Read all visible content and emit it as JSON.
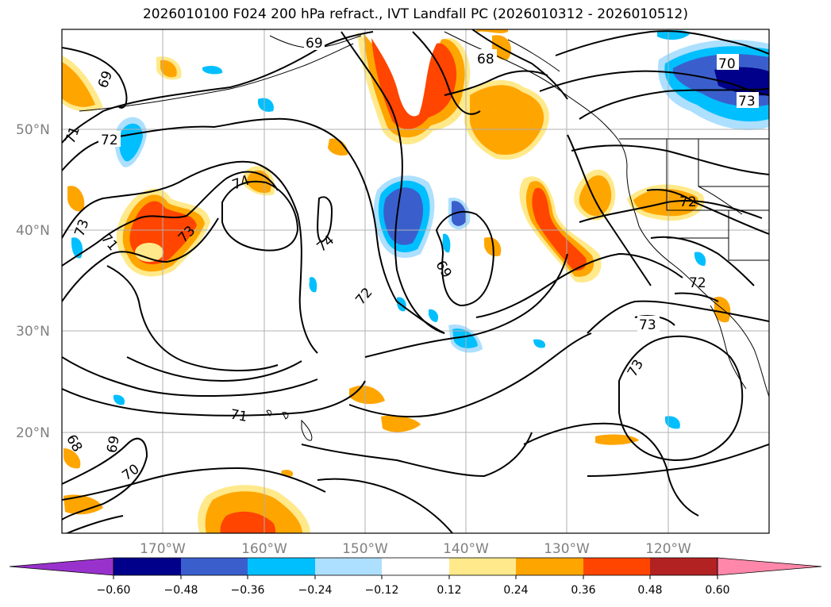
{
  "title": "2026010100 F024 200 hPa refract., IVT Landfall PC (2026010312 - 2026010512)",
  "map": {
    "lon_range": [
      -180,
      -110
    ],
    "lat_range": [
      10,
      60
    ],
    "lat_ticks": [
      {
        "value": 20,
        "label": "20°N"
      },
      {
        "value": 30,
        "label": "30°N"
      },
      {
        "value": 40,
        "label": "40°N"
      },
      {
        "value": 50,
        "label": "50°N"
      }
    ],
    "lon_ticks": [
      {
        "value": -170,
        "label": "170°W"
      },
      {
        "value": -160,
        "label": "160°W"
      },
      {
        "value": -150,
        "label": "150°W"
      },
      {
        "value": -140,
        "label": "140°W"
      },
      {
        "value": -130,
        "label": "130°W"
      },
      {
        "value": -120,
        "label": "120°W"
      }
    ],
    "grid": true,
    "contour_labels": [
      "69",
      "68",
      "70",
      "73",
      "71",
      "72",
      "74",
      "73",
      "71",
      "69",
      "74",
      "72",
      "73",
      "72",
      "73",
      "71",
      "68",
      "69",
      "70"
    ]
  },
  "colorbar": {
    "ticks": [
      "−0.60",
      "−0.48",
      "−0.36",
      "−0.24",
      "−0.12",
      "0.12",
      "0.24",
      "0.36",
      "0.48",
      "0.60"
    ],
    "colors": [
      "#9932CC",
      "#00008B",
      "#3A5FCD",
      "#00BFFF",
      "#ADDFFF",
      "#FFFFFF",
      "#FFE98A",
      "#FFA500",
      "#FF4500",
      "#B22222",
      "#FF88AA"
    ]
  },
  "fill_colors": {
    "orange_light": "#FFE98A",
    "orange": "#FFA500",
    "red_orange": "#FF4500",
    "dark_red": "#B22222",
    "blue_light": "#ADDFFF",
    "blue_sky": "#00BFFF",
    "blue_mid": "#3A5FCD",
    "blue_navy": "#00008B"
  }
}
